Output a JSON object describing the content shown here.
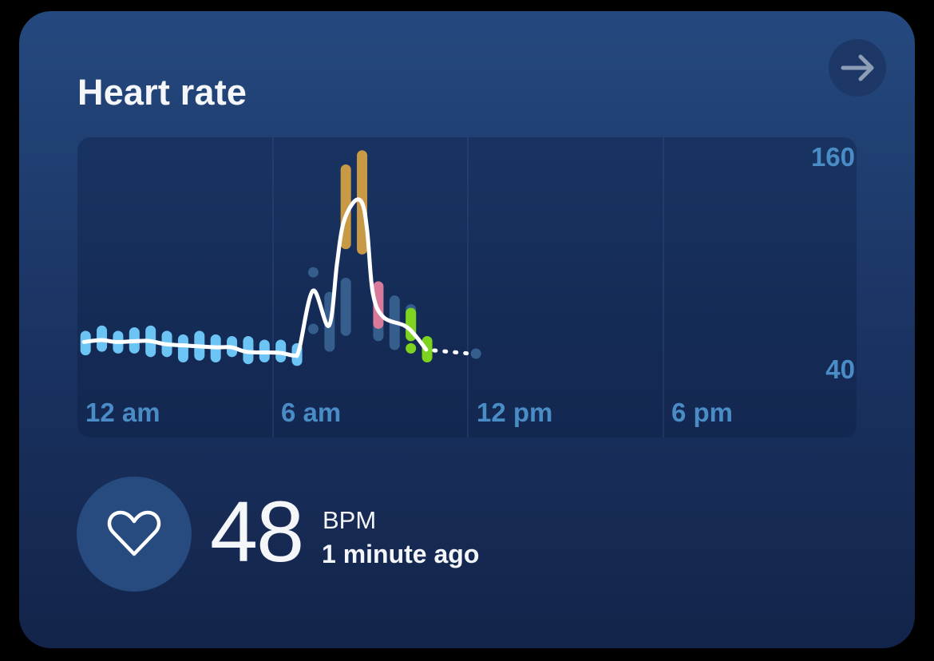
{
  "card": {
    "title": "Heart rate",
    "open_icon": "arrow-right-icon"
  },
  "current": {
    "value": "48",
    "unit": "BPM",
    "updated": "1 minute ago",
    "icon": "heart-outline-icon"
  },
  "chart_data": {
    "type": "line",
    "x_unit": "hour of day",
    "xlim": [
      0,
      24
    ],
    "ylim": [
      40,
      160
    ],
    "y_ticks": [
      "160",
      "40"
    ],
    "x_ticks": [
      "12 am",
      "6 am",
      "12 pm",
      "6 pm"
    ],
    "grid": "vertical lines every 6 hours",
    "colors": {
      "resting": "#6cc4f5",
      "light": "#3b6796",
      "fat_burn": "#7ed321",
      "cardio": "#d97a9a",
      "peak": "#c99a45",
      "line": "#ffffff"
    },
    "ranges": [
      {
        "h": 0.25,
        "low": 51,
        "high": 59,
        "zone": "resting"
      },
      {
        "h": 0.75,
        "low": 53,
        "high": 62,
        "zone": "resting"
      },
      {
        "h": 1.25,
        "low": 52,
        "high": 59,
        "zone": "resting"
      },
      {
        "h": 1.75,
        "low": 52,
        "high": 61,
        "zone": "resting"
      },
      {
        "h": 2.25,
        "low": 50,
        "high": 62,
        "zone": "resting"
      },
      {
        "h": 2.75,
        "low": 50,
        "high": 59,
        "zone": "resting"
      },
      {
        "h": 3.25,
        "low": 47,
        "high": 57,
        "zone": "resting"
      },
      {
        "h": 3.75,
        "low": 48,
        "high": 59,
        "zone": "resting"
      },
      {
        "h": 4.25,
        "low": 47,
        "high": 57,
        "zone": "resting"
      },
      {
        "h": 4.75,
        "low": 50,
        "high": 56,
        "zone": "resting"
      },
      {
        "h": 5.25,
        "low": 46,
        "high": 56,
        "zone": "resting"
      },
      {
        "h": 5.75,
        "low": 47,
        "high": 54,
        "zone": "resting"
      },
      {
        "h": 6.25,
        "low": 47,
        "high": 54,
        "zone": "resting"
      },
      {
        "h": 6.75,
        "low": 45,
        "high": 52,
        "zone": "resting"
      },
      {
        "h": 7.25,
        "low": 95,
        "high": 95,
        "zone": "light"
      },
      {
        "h": 7.25,
        "low": 63,
        "high": 63,
        "zone": "light"
      },
      {
        "h": 7.75,
        "low": 53,
        "high": 81,
        "zone": "light"
      },
      {
        "h": 8.25,
        "low": 62,
        "high": 89,
        "zone": "light"
      },
      {
        "h": 8.25,
        "low": 111,
        "high": 153,
        "zone": "peak"
      },
      {
        "h": 8.75,
        "low": 108,
        "high": 161,
        "zone": "peak"
      },
      {
        "h": 9.25,
        "low": 59,
        "high": 70,
        "zone": "light"
      },
      {
        "h": 9.25,
        "low": 66,
        "high": 87,
        "zone": "cardio"
      },
      {
        "h": 9.75,
        "low": 54,
        "high": 79,
        "zone": "light"
      },
      {
        "h": 10.25,
        "low": 59,
        "high": 74,
        "zone": "light"
      },
      {
        "h": 10.25,
        "low": 59,
        "high": 72,
        "zone": "fat_burn"
      },
      {
        "h": 10.25,
        "low": 52,
        "high": 52,
        "zone": "fat_burn"
      },
      {
        "h": 10.75,
        "low": 47,
        "high": 56,
        "zone": "fat_burn"
      },
      {
        "h": 12.25,
        "low": 49,
        "high": 49,
        "zone": "light"
      }
    ],
    "line": [
      [
        0.2,
        55.6
      ],
      [
        0.74,
        56.7
      ],
      [
        1.23,
        55.6
      ],
      [
        2.13,
        56.3
      ],
      [
        2.7,
        54.4
      ],
      [
        3.44,
        53.5
      ],
      [
        4.25,
        52.6
      ],
      [
        4.74,
        52.6
      ],
      [
        5.23,
        50
      ],
      [
        6.21,
        49.5
      ],
      [
        6.67,
        48
      ],
      [
        6.82,
        51.7
      ],
      [
        7.24,
        84.6
      ],
      [
        7.73,
        64.8
      ],
      [
        7.98,
        100
      ],
      [
        8.17,
        122.5
      ],
      [
        8.51,
        135
      ],
      [
        8.76,
        133.8
      ],
      [
        8.91,
        118
      ],
      [
        9.08,
        83.3
      ],
      [
        9.4,
        69.8
      ],
      [
        10.06,
        64.8
      ],
      [
        10.38,
        59.4
      ],
      [
        10.72,
        51.3
      ]
    ],
    "projected": [
      [
        10.72,
        51.3
      ],
      [
        12.1,
        49
      ]
    ]
  }
}
